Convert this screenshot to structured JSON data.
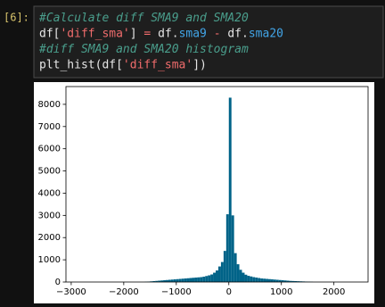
{
  "cell": {
    "prompt": "[6]:",
    "code": [
      [
        {
          "text": "#Calculate diff SMA9 and SMA20",
          "color": "#4a9e8c",
          "italic": true
        }
      ],
      [
        {
          "text": "df[",
          "color": "#e6e6e6"
        },
        {
          "text": "'diff_sma'",
          "color": "#f06c6c"
        },
        {
          "text": "] ",
          "color": "#e6e6e6"
        },
        {
          "text": "=",
          "color": "#f06c6c"
        },
        {
          "text": " df.",
          "color": "#e6e6e6"
        },
        {
          "text": "sma9",
          "color": "#42a5e8"
        },
        {
          "text": " ",
          "color": "#e6e6e6"
        },
        {
          "text": "-",
          "color": "#f06c6c"
        },
        {
          "text": " df.",
          "color": "#e6e6e6"
        },
        {
          "text": "sma20",
          "color": "#42a5e8"
        }
      ],
      [
        {
          "text": "#diff SMA9 and SMA20 histogram",
          "color": "#4a9e8c",
          "italic": true
        }
      ],
      [
        {
          "text": "plt_hist(df[",
          "color": "#e6e6e6"
        },
        {
          "text": "'diff_sma'",
          "color": "#f06c6c"
        },
        {
          "text": "])",
          "color": "#e6e6e6"
        }
      ]
    ]
  },
  "chart_data": {
    "type": "histogram",
    "color": "#006388",
    "bins": [
      -1600,
      -1550,
      -1500,
      -1450,
      -1400,
      -1350,
      -1300,
      -1250,
      -1200,
      -1150,
      -1100,
      -1050,
      -1000,
      -950,
      -900,
      -850,
      -800,
      -750,
      -700,
      -650,
      -600,
      -550,
      -500,
      -450,
      -400,
      -350,
      -300,
      -250,
      -200,
      -150,
      -100,
      -50,
      0,
      50,
      100,
      150,
      200,
      250,
      300,
      350,
      400,
      450,
      500,
      550,
      600,
      650,
      700,
      750,
      800,
      850,
      900,
      950,
      1000,
      1050,
      1100,
      1150,
      1200,
      1250,
      1300,
      1350,
      1400,
      1450,
      1500,
      1550,
      1600
    ],
    "counts": [
      10,
      20,
      30,
      40,
      50,
      60,
      70,
      80,
      90,
      100,
      110,
      120,
      130,
      140,
      150,
      160,
      170,
      180,
      190,
      200,
      210,
      220,
      240,
      270,
      300,
      340,
      420,
      520,
      700,
      900,
      1400,
      3050,
      8300,
      3000,
      1300,
      800,
      550,
      420,
      330,
      280,
      250,
      220,
      200,
      180,
      160,
      150,
      140,
      130,
      120,
      110,
      100,
      90,
      80,
      70,
      60,
      50,
      45,
      40,
      35,
      30,
      25,
      20,
      15,
      10
    ],
    "xlim": [
      -3100,
      2650
    ],
    "ylim": [
      0,
      8800
    ],
    "xticks": [
      {
        "value": -3000,
        "label": "−3000"
      },
      {
        "value": -2000,
        "label": "−2000"
      },
      {
        "value": -1000,
        "label": "−1000"
      },
      0,
      1000,
      2000
    ],
    "yticks": [
      0,
      1000,
      2000,
      3000,
      4000,
      5000,
      6000,
      7000,
      8000
    ]
  }
}
